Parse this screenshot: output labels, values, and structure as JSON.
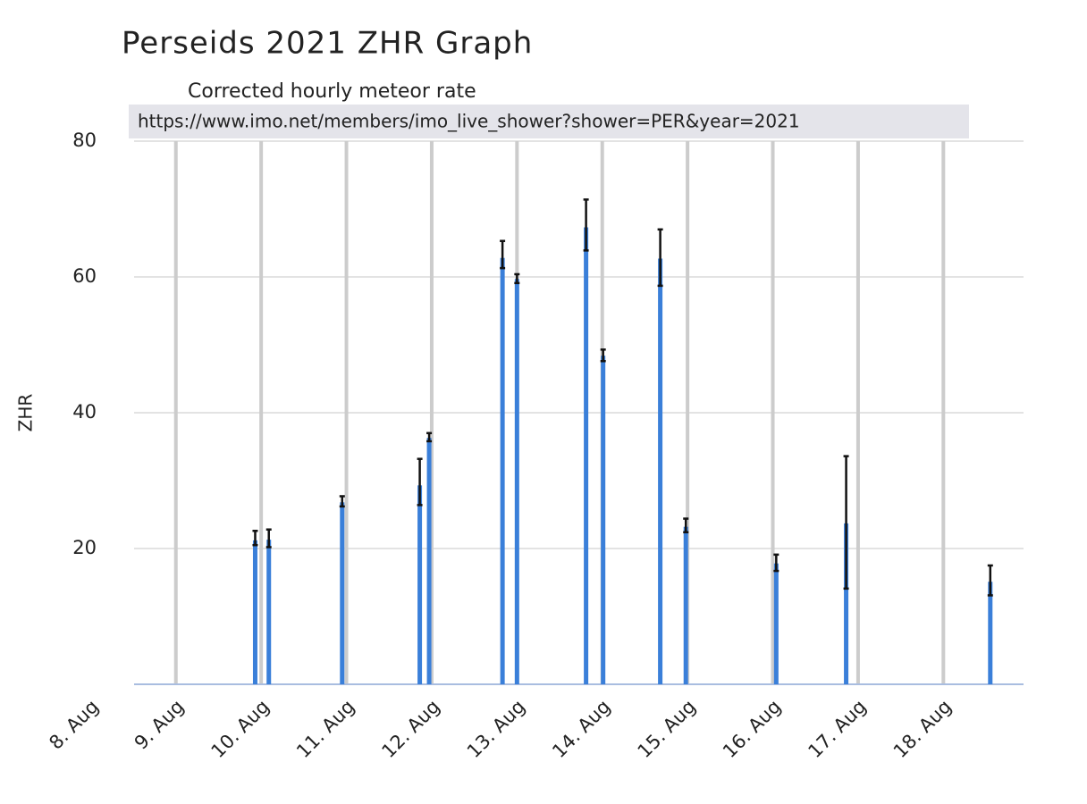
{
  "chart_data": {
    "type": "bar",
    "title": "Perseids 2021 ZHR Graph",
    "subtitle": "Corrected hourly meteor rate",
    "source": "https://www.imo.net/members/imo_live_shower?shower=PER&year=2021",
    "y_label": "ZHR",
    "x": [
      9.93,
      10.09,
      10.95,
      11.86,
      11.97,
      12.83,
      13.0,
      13.81,
      14.01,
      14.68,
      14.98,
      16.04,
      16.86,
      18.55
    ],
    "values": [
      21.2,
      21.3,
      26.8,
      29.3,
      36.3,
      62.8,
      59.7,
      67.3,
      48.4,
      62.7,
      23.2,
      17.8,
      23.7,
      15.1
    ],
    "error_low": [
      20.5,
      20.2,
      26.2,
      26.4,
      35.8,
      61.3,
      59.1,
      63.9,
      47.6,
      58.7,
      22.4,
      16.7,
      14.1,
      13.1
    ],
    "error_high": [
      22.6,
      22.8,
      27.7,
      33.2,
      37.0,
      65.3,
      60.4,
      71.4,
      49.3,
      67.0,
      24.4,
      19.1,
      33.6,
      17.5
    ],
    "color": "#3a7fd9",
    "error_color": "#111111",
    "xlim": [
      8.51,
      18.94
    ],
    "xticks": [
      {
        "value": 8,
        "label": "8. Aug"
      },
      {
        "value": 9,
        "label": "9. Aug"
      },
      {
        "value": 10,
        "label": "10. Aug"
      },
      {
        "value": 11,
        "label": "11. Aug"
      },
      {
        "value": 12,
        "label": "12. Aug"
      },
      {
        "value": 13,
        "label": "13. Aug"
      },
      {
        "value": 14,
        "label": "14. Aug"
      },
      {
        "value": 15,
        "label": "15. Aug"
      },
      {
        "value": 16,
        "label": "16. Aug"
      },
      {
        "value": 17,
        "label": "17. Aug"
      },
      {
        "value": 18,
        "label": "18. Aug"
      }
    ],
    "ylim": [
      0,
      80
    ],
    "yticks": [
      20,
      40,
      60,
      80
    ],
    "grid": true
  }
}
